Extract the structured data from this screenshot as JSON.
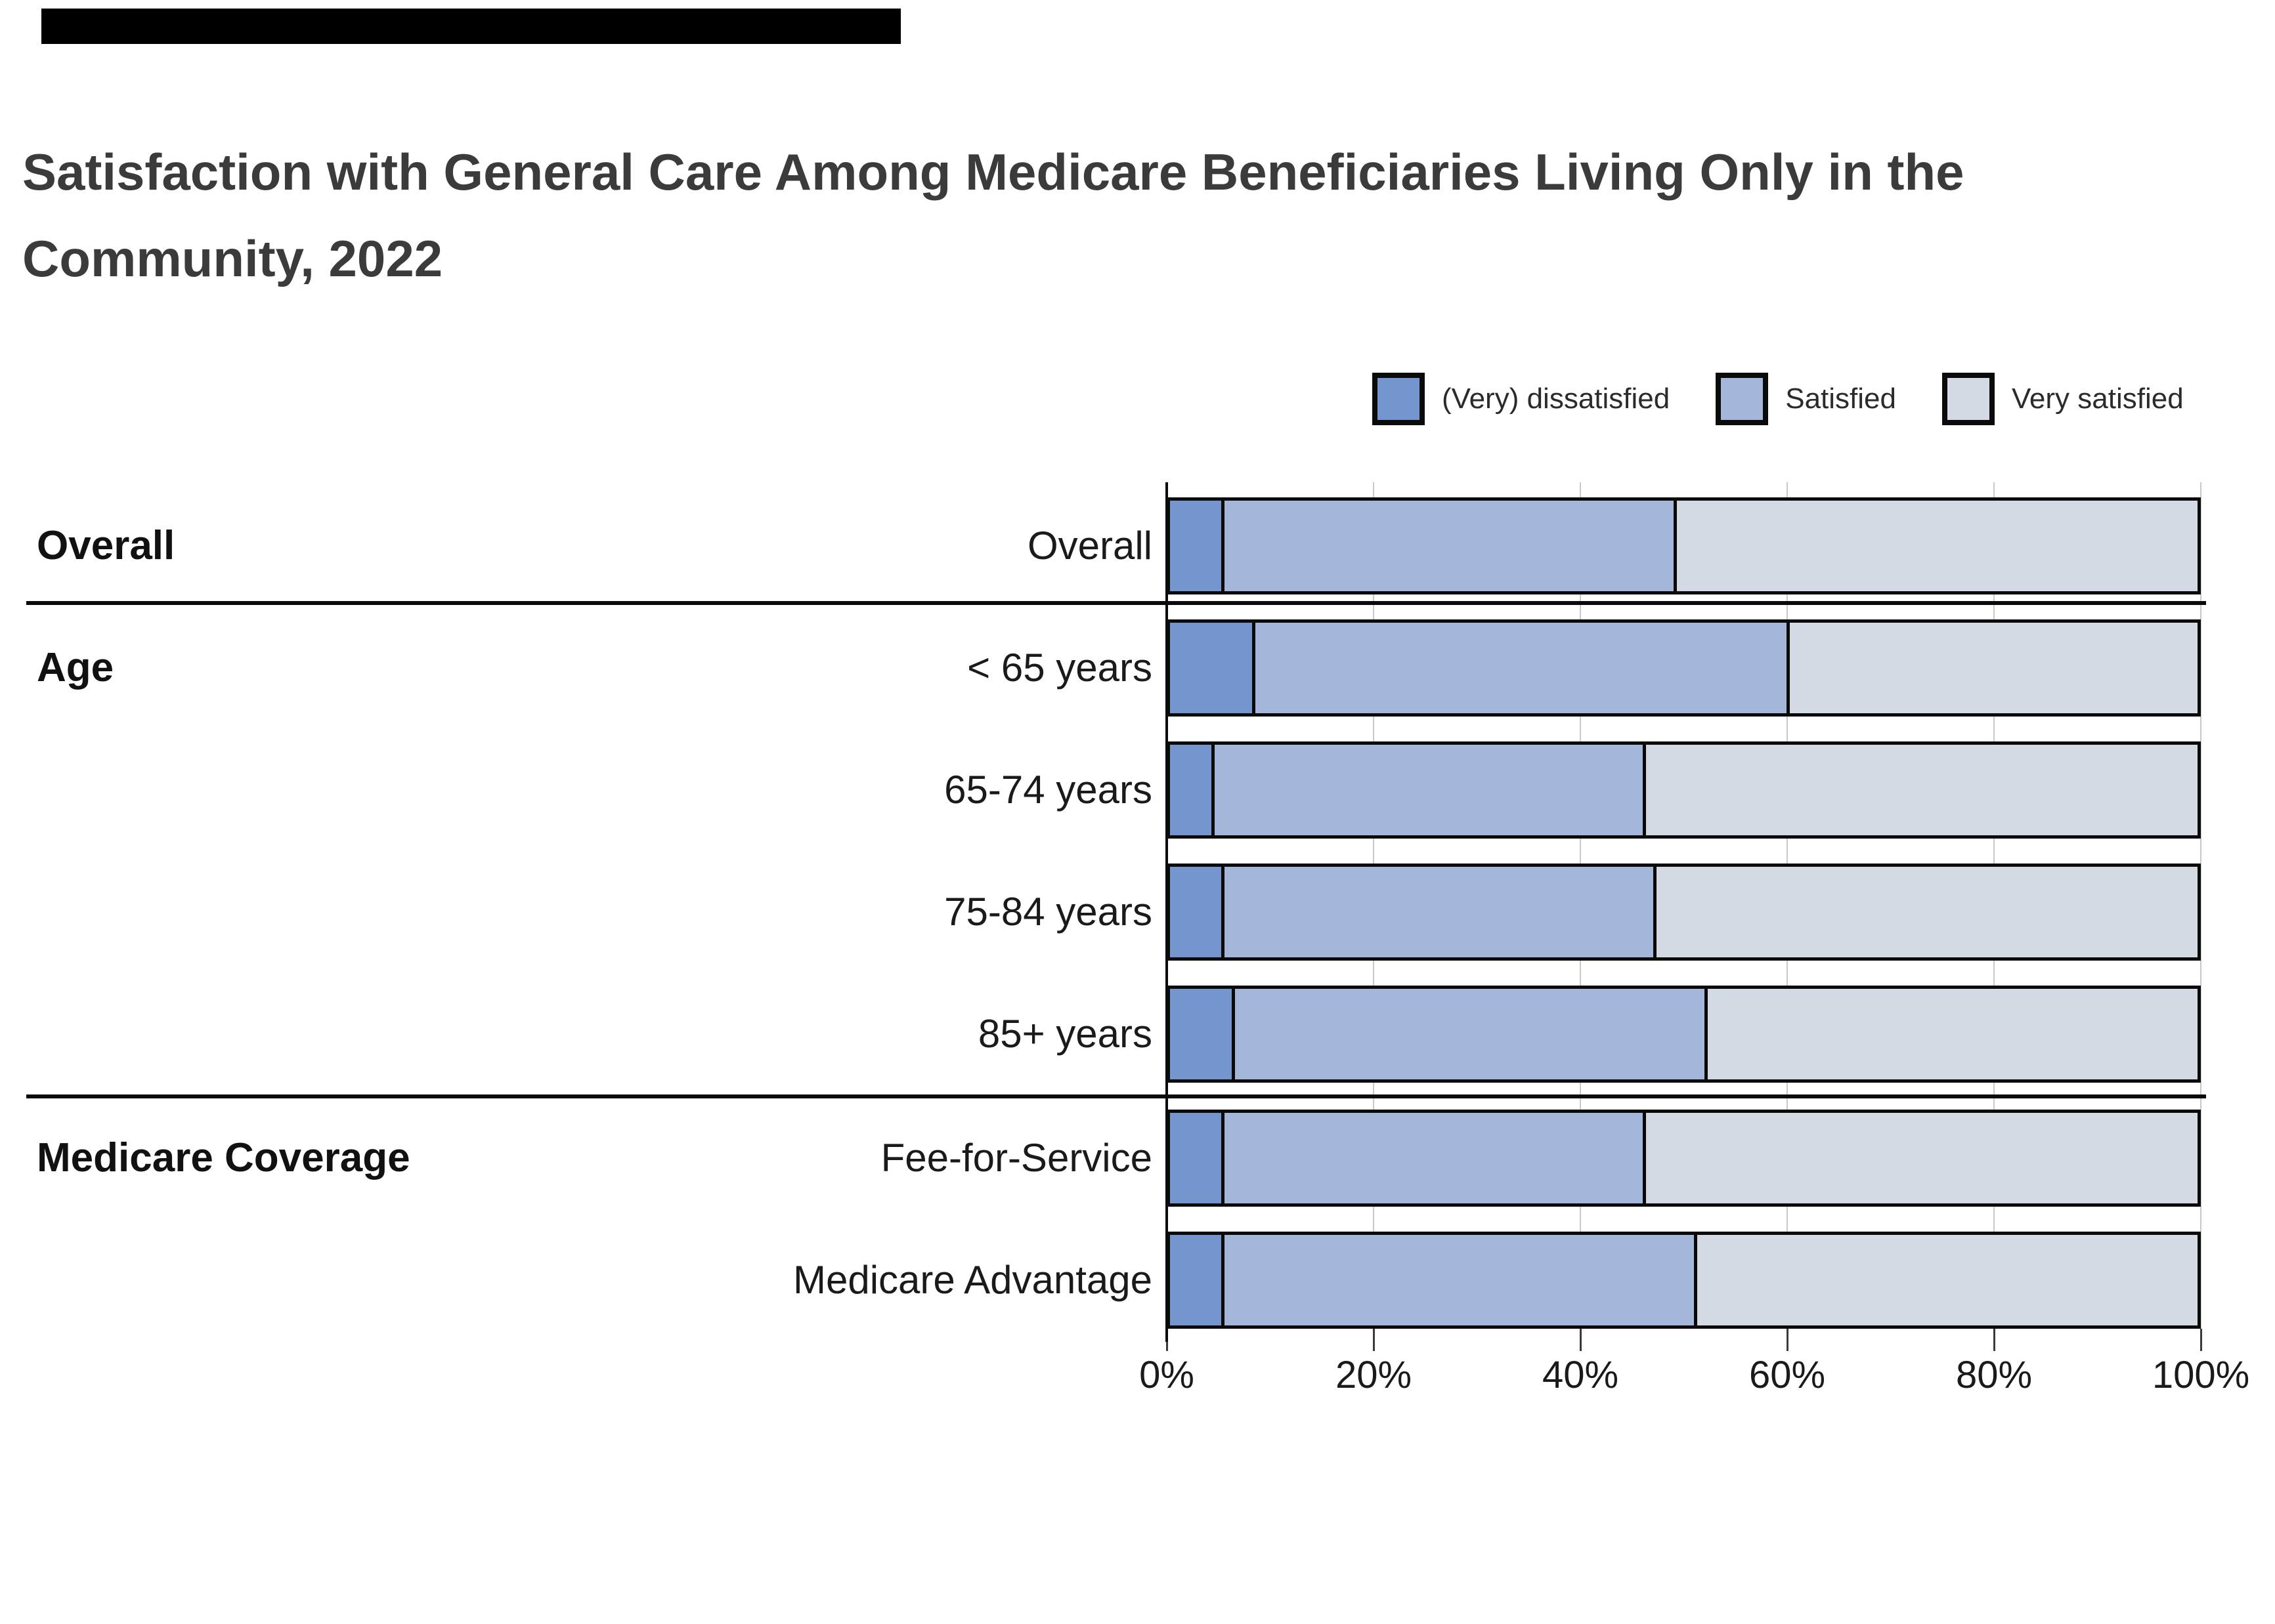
{
  "title": "Satisfaction with General Care Among Medicare Beneficiaries Living Only in the Community, 2022",
  "title_lines": [
    "Satisfaction with General Care Among Medicare Beneficiaries Living Only in the",
    "Community, 2022"
  ],
  "redaction_bar_color": "#000000",
  "legend": {
    "position": "top-right",
    "labels": [
      "(Very) dissatisfied",
      "Satisfied",
      "Very satisfied"
    ]
  },
  "chart_data": {
    "type": "bar",
    "orientation": "horizontal",
    "stacked": true,
    "unit": "%",
    "xlim": [
      0,
      100
    ],
    "x_ticks": [
      "0%",
      "20%",
      "40%",
      "60%",
      "80%",
      "100%"
    ],
    "x_tick_values": [
      0,
      20,
      40,
      60,
      80,
      100
    ],
    "grid": true,
    "categories": [
      "Overall",
      "< 65 years",
      "65-74 years",
      "75-84 years",
      "85+ years",
      "Fee-for-Service",
      "Medicare Advantage"
    ],
    "groups": [
      {
        "label": "Overall",
        "start": 0,
        "end": 0
      },
      {
        "label": "Age",
        "start": 1,
        "end": 4
      },
      {
        "label": "Medicare Coverage",
        "start": 5,
        "end": 6
      }
    ],
    "series": [
      {
        "name": "(Very) dissatisfied",
        "color": "#7495CD",
        "values": [
          5,
          8,
          4,
          5,
          6,
          5,
          5
        ]
      },
      {
        "name": "Satisfied",
        "color": "#A4B7DB",
        "values": [
          44,
          52,
          42,
          42,
          46,
          41,
          46
        ]
      },
      {
        "name": "Very satisfied",
        "color": "#D4DAE3",
        "values": [
          51,
          40,
          54,
          53,
          48,
          54,
          49
        ]
      }
    ],
    "bar_border_color": "#0a0a0a",
    "gridline_color": "#c9c9c9",
    "title_color": "#3b3b3b"
  }
}
